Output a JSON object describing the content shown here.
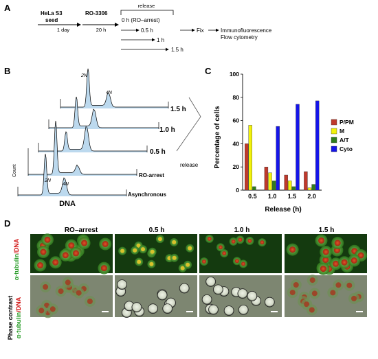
{
  "panel_a": {
    "letter": "A",
    "seed_line1": "HeLa S3",
    "seed_line2": "seed",
    "drug": "RO-3306",
    "time_1d": "1 day",
    "time_20h": "20 h",
    "release": "release",
    "t0": "0 h (RO–arrest)",
    "t05": "0.5 h",
    "t1": "1 h",
    "t15": "1.5 h",
    "fix": "Fix",
    "out1": "Immunofluorescence",
    "out2": "Flow cytometry"
  },
  "panel_b": {
    "letter": "B",
    "count_label": "Count",
    "dna_label": "DNA",
    "peak_2n": "2N",
    "peak_4n": "4N",
    "release_label": "release",
    "rows": [
      "1.5 h",
      "1.0 h",
      "0.5 h",
      "RO-arrest",
      "Asynchronous"
    ]
  },
  "panel_c": {
    "letter": "C",
    "chart_data": {
      "type": "bar",
      "title": "",
      "xlabel": "Release (h)",
      "ylabel": "Percentage of cells",
      "categories": [
        "0.5",
        "1.0",
        "1.5",
        "2.0"
      ],
      "ylim": [
        0,
        100
      ],
      "yticks": [
        0,
        20,
        40,
        60,
        80,
        100
      ],
      "legend_position": "right",
      "series": [
        {
          "name": "P/PM",
          "color": "#c0392b",
          "values": [
            40,
            20,
            13,
            16
          ]
        },
        {
          "name": "M",
          "color": "#f2f20a",
          "values": [
            56,
            15,
            8,
            2
          ]
        },
        {
          "name": "A/T",
          "color": "#2f7d1d",
          "values": [
            3,
            8,
            3,
            5
          ]
        },
        {
          "name": "Cyto",
          "color": "#1515e8",
          "values": [
            0,
            55,
            74,
            77
          ]
        }
      ]
    }
  },
  "panel_d": {
    "letter": "D",
    "columns": [
      "RO–arrest",
      "0.5 h",
      "1.0 h",
      "1.5 h"
    ],
    "row1_label_a": "α-tubulin",
    "row1_label_b": "/DNA",
    "row2_label_top": "Phase contrast",
    "row2_label_a": "α-tubulin",
    "row2_label_b": "/DNA"
  }
}
